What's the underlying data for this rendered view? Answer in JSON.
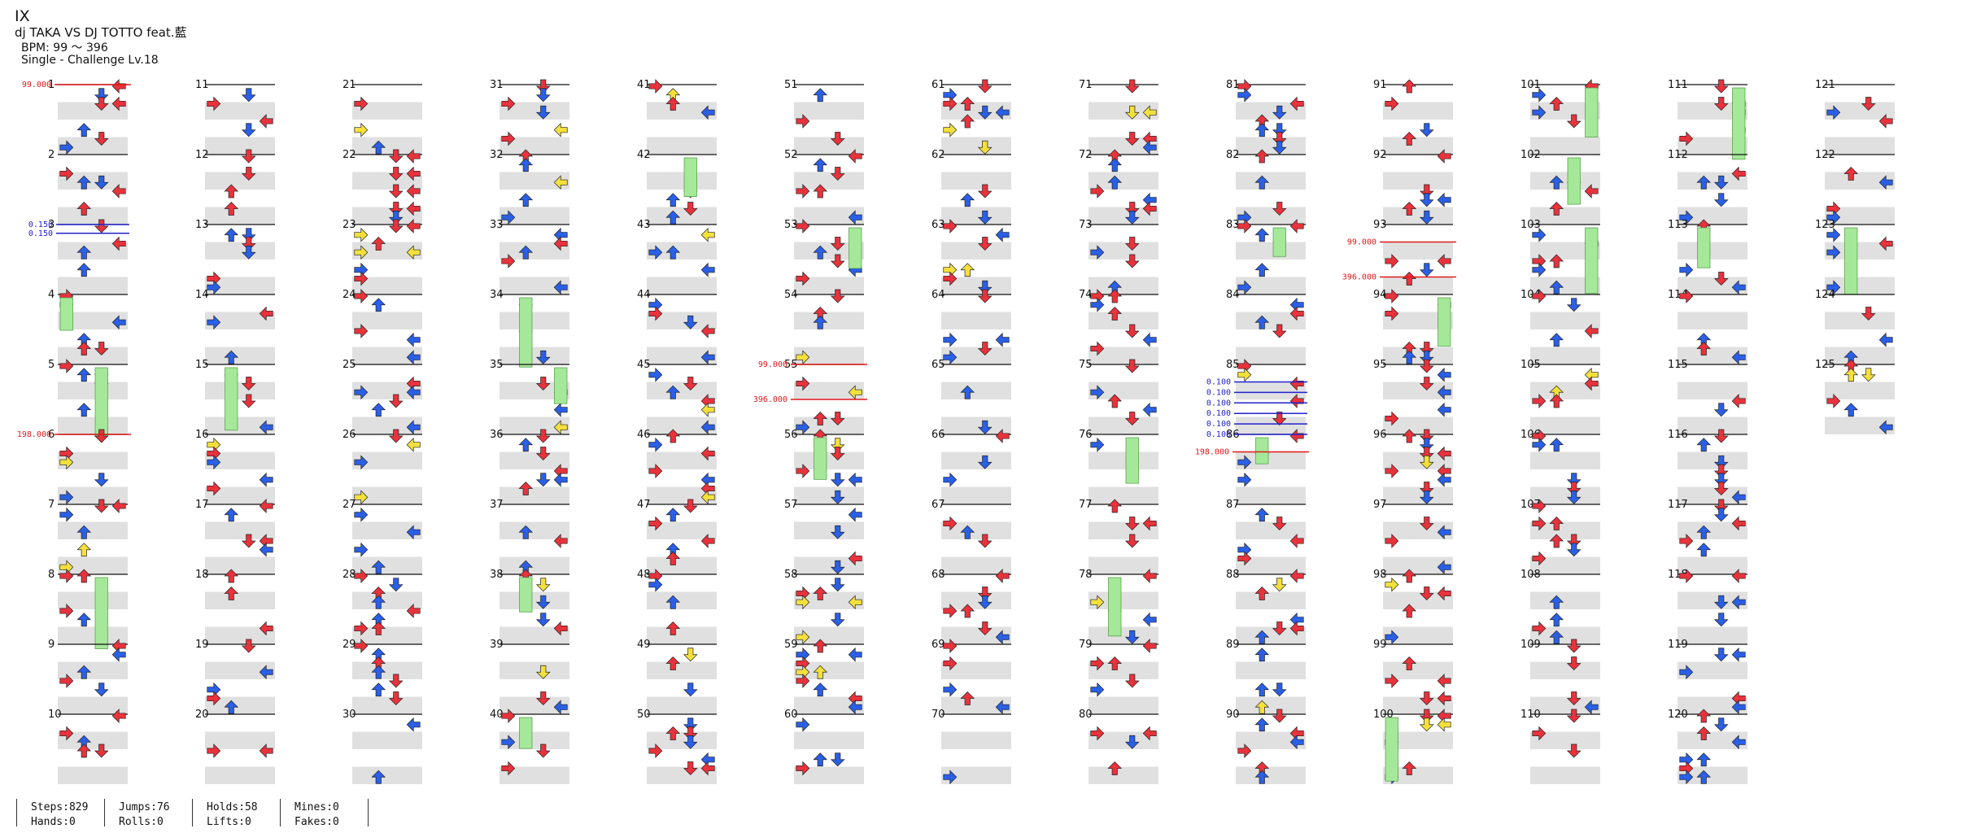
{
  "song": {
    "title": "IX",
    "artist": "dj TAKA VS DJ TOTTO feat.藍",
    "bpm_text": "BPM: 99 ～ 396",
    "difficulty_text": "Single - Challenge  Lv.18"
  },
  "stats": [
    {
      "top": "Steps:829",
      "bottom": "Hands:0"
    },
    {
      "top": "Jumps:76",
      "bottom": "Rolls:0"
    },
    {
      "top": "Holds:58",
      "bottom": "Lifts:0"
    },
    {
      "top": "Mines:0",
      "bottom": "Fakes:0"
    }
  ],
  "colors": {
    "quarter": "#e8323c",
    "eighth": "#2a5fe6",
    "sixteenth": "#f4e03c",
    "twelfth": "#9b3ff0",
    "twentyfourth": "#f09033",
    "hold": "#a6e89a",
    "band": "#e0e0e0",
    "bpm_marker": "#e01818",
    "stop_marker": "#2222cc"
  },
  "notation": {
    "bpm_changes": [
      {
        "measure": 1,
        "label": "99.000"
      },
      {
        "measure": 6,
        "label": "198.000"
      },
      {
        "measure": 55,
        "label": "99.000"
      },
      {
        "measure": 55.5,
        "label": "396.000"
      },
      {
        "measure": 86.25,
        "label": "198.000"
      },
      {
        "measure": 93.25,
        "label": "99.000"
      },
      {
        "measure": 93.75,
        "label": "396.000"
      }
    ],
    "stops": [
      {
        "measure": 3,
        "label": "0.150"
      },
      {
        "measure": 3.125,
        "label": "0.150"
      },
      {
        "measure": 85.25,
        "label": "0.100"
      },
      {
        "measure": 85.4,
        "label": "0.100"
      },
      {
        "measure": 85.55,
        "label": "0.100"
      },
      {
        "measure": 85.7,
        "label": "0.100"
      },
      {
        "measure": 85.85,
        "label": "0.100"
      },
      {
        "measure": 86,
        "label": "0.100"
      }
    ]
  },
  "measures": {
    "first": 1,
    "last": 125,
    "per_column": 10
  }
}
